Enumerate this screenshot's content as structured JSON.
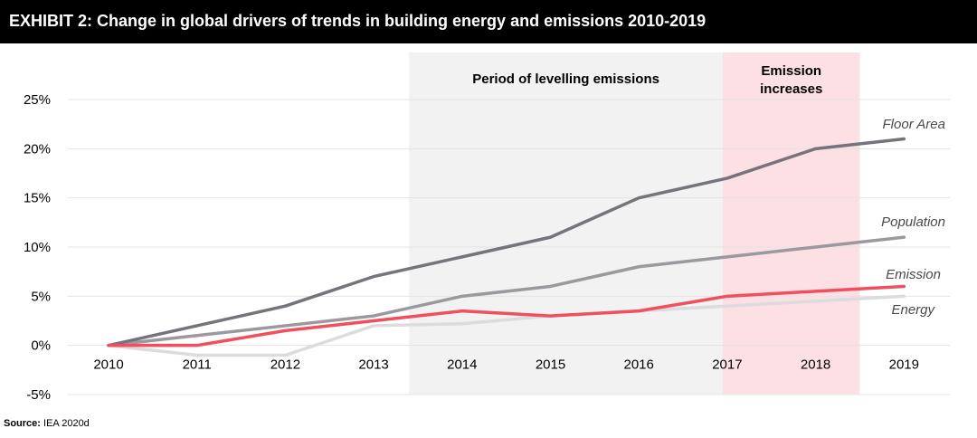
{
  "header": {
    "title": "EXHIBIT 2: Change in global drivers of trends in building energy and emissions 2010-2019"
  },
  "source": {
    "label": "Source:",
    "text": "IEA 2020d"
  },
  "colors": {
    "header_bg": "#000000",
    "floor_area": "#76737a",
    "population": "#9b989e",
    "emission": "#f0505e",
    "energy": "#dcdbde",
    "band_levelling": "#f2f2f2",
    "band_increase": "#fde0e4",
    "grid": "#e3e3e3"
  },
  "chart_data": {
    "type": "line",
    "x": [
      2010,
      2011,
      2012,
      2013,
      2014,
      2015,
      2016,
      2017,
      2018,
      2019
    ],
    "xticks": [
      "2010",
      "2011",
      "2012",
      "2013",
      "2014",
      "2015",
      "2016",
      "2017",
      "2018",
      "2019"
    ],
    "ylim": [
      -5,
      25
    ],
    "yticks": [
      25,
      20,
      15,
      10,
      5,
      0,
      -5
    ],
    "ytick_labels": [
      "25%",
      "20%",
      "15%",
      "10%",
      "5%",
      "0%",
      "-5%"
    ],
    "grid": true,
    "series": [
      {
        "name": "Floor Area",
        "color": "#76737a",
        "values": [
          0,
          2,
          4,
          7,
          9,
          11,
          15,
          17,
          20,
          21
        ]
      },
      {
        "name": "Population",
        "color": "#9b989e",
        "values": [
          0,
          1,
          2,
          3,
          5,
          6,
          8,
          9,
          10,
          11
        ]
      },
      {
        "name": "Emission",
        "color": "#f0505e",
        "values": [
          0,
          0,
          1.5,
          2.5,
          3.5,
          3,
          3.5,
          5,
          5.5,
          6
        ]
      },
      {
        "name": "Energy",
        "color": "#dcdbde",
        "values": [
          0,
          -1,
          -1,
          2,
          2.2,
          3,
          3.5,
          4,
          4.5,
          5
        ]
      }
    ],
    "bands": [
      {
        "label": "Period of levelling emissions",
        "from": 2013.4,
        "to": 2016.95,
        "color": "#f2f2f2"
      },
      {
        "label_lines": [
          "Emission",
          "increases"
        ],
        "from": 2016.95,
        "to": 2018.5,
        "color": "#fde0e4"
      }
    ]
  }
}
